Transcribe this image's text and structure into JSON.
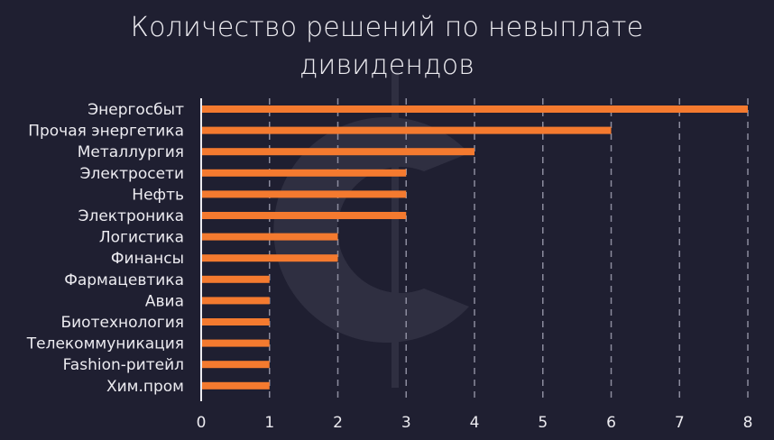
{
  "title_line1": "Количество решений по невыплате",
  "title_line2": "дивидендов",
  "chart_data": {
    "type": "bar",
    "orientation": "horizontal",
    "title": "Количество решений по невыплате дивидендов",
    "categories": [
      "Энергосбыт",
      "Прочая энергетика",
      "Металлургия",
      "Электросети",
      "Нефть",
      "Электроника",
      "Логистика",
      "Финансы",
      "Фармацевтика",
      "Авиа",
      "Биотехнология",
      "Телекоммуникация",
      "Fashion-ритейл",
      "Хим.пром"
    ],
    "values": [
      8,
      6,
      4,
      3,
      3,
      3,
      2,
      2,
      1,
      1,
      1,
      1,
      1,
      1
    ],
    "xlim": [
      0,
      8
    ],
    "xticks": [
      "0",
      "1",
      "2",
      "3",
      "4",
      "5",
      "6",
      "7",
      "8"
    ],
    "grid": "vertical dashed",
    "bar_color": "#f47a2f",
    "background_color": "#1f1f31"
  }
}
